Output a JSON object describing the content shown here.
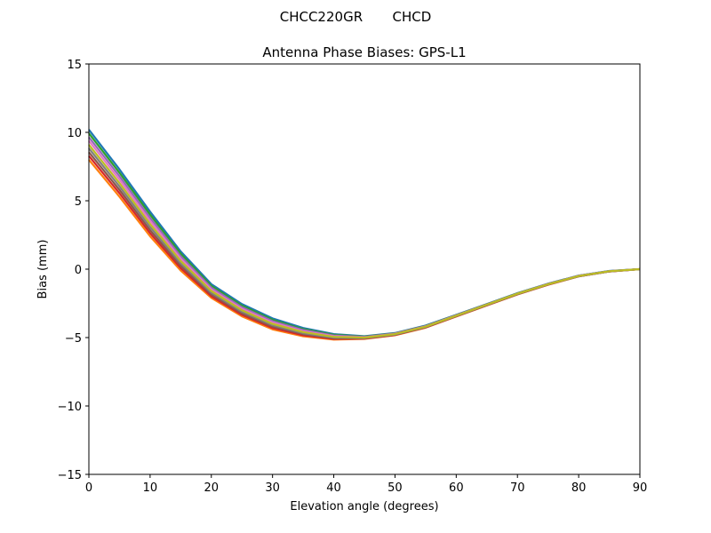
{
  "chart_data": {
    "type": "line",
    "suptitle": "CHCC220GR       CHCD",
    "title": "Antenna Phase Biases: GPS-L1",
    "xlabel": "Elevation angle (degrees)",
    "ylabel": "Bias (mm)",
    "xlim": [
      0,
      90
    ],
    "ylim": [
      -15,
      15
    ],
    "xticks": [
      0,
      10,
      20,
      30,
      40,
      50,
      60,
      70,
      80,
      90
    ],
    "yticks": [
      -15,
      -10,
      -5,
      0,
      5,
      10,
      15
    ],
    "ytick_labels": [
      "−15",
      "−10",
      "−5",
      "0",
      "5",
      "10",
      "15"
    ],
    "grid": false,
    "colors": [
      "#1f77b4",
      "#ff7f0e",
      "#2ca02c",
      "#d62728",
      "#9467bd",
      "#8c564b",
      "#e377c2",
      "#7f7f7f",
      "#bcbd22",
      "#17becf"
    ],
    "x": [
      0,
      5,
      10,
      15,
      20,
      25,
      30,
      35,
      40,
      45,
      50,
      55,
      60,
      65,
      70,
      75,
      80,
      85,
      90
    ],
    "series": [
      {
        "values": [
          10.2,
          7.3,
          4.2,
          1.3,
          -1.1,
          -2.55,
          -3.6,
          -4.3,
          -4.75,
          -4.9,
          -4.67,
          -4.12,
          -3.34,
          -2.55,
          -1.75,
          -1.06,
          -0.47,
          -0.13,
          0
        ]
      },
      {
        "values": [
          8.0,
          5.3,
          2.4,
          -0.1,
          -2.1,
          -3.45,
          -4.4,
          -4.9,
          -5.15,
          -5.1,
          -4.83,
          -4.28,
          -3.46,
          -2.65,
          -1.85,
          -1.14,
          -0.53,
          -0.17,
          0
        ]
      },
      {
        "values": [
          9.93,
          7.05,
          3.98,
          1.13,
          -1.23,
          -2.66,
          -3.7,
          -4.38,
          -4.8,
          -4.93,
          -4.69,
          -4.14,
          -3.36,
          -2.56,
          -1.76,
          -1.07,
          -0.48,
          -0.14,
          0
        ]
      },
      {
        "values": [
          8.28,
          5.55,
          2.63,
          0.08,
          -1.98,
          -3.34,
          -4.3,
          -4.83,
          -5.1,
          -5.08,
          -4.81,
          -4.26,
          -3.45,
          -2.64,
          -1.84,
          -1.13,
          -0.52,
          -0.17,
          0
        ]
      },
      {
        "values": [
          9.65,
          6.8,
          3.75,
          0.95,
          -1.35,
          -2.78,
          -3.8,
          -4.45,
          -4.85,
          -4.95,
          -4.71,
          -4.16,
          -3.37,
          -2.58,
          -1.78,
          -1.08,
          -0.49,
          -0.14,
          0
        ]
      },
      {
        "values": [
          8.55,
          5.8,
          2.85,
          0.25,
          -1.85,
          -3.23,
          -4.2,
          -4.75,
          -5.05,
          -5.05,
          -4.79,
          -4.24,
          -3.43,
          -2.63,
          -1.83,
          -1.12,
          -0.52,
          -0.16,
          0
        ]
      },
      {
        "values": [
          9.38,
          6.55,
          3.53,
          0.78,
          -1.48,
          -2.89,
          -3.9,
          -4.53,
          -4.9,
          -4.98,
          -4.73,
          -4.18,
          -3.39,
          -2.59,
          -1.79,
          -1.09,
          -0.49,
          -0.15,
          0
        ]
      },
      {
        "values": [
          8.83,
          6.05,
          3.08,
          0.43,
          -1.73,
          -3.11,
          -4.1,
          -4.68,
          -5.0,
          -5.03,
          -4.77,
          -4.22,
          -3.42,
          -2.61,
          -1.81,
          -1.11,
          -0.51,
          -0.16,
          0
        ]
      },
      {
        "values": [
          9.1,
          6.3,
          3.3,
          0.6,
          -1.6,
          -3.0,
          -4.0,
          -4.6,
          -4.95,
          -5.0,
          -4.75,
          -4.2,
          -3.4,
          -2.6,
          -1.8,
          -1.1,
          -0.5,
          -0.15,
          0
        ]
      }
    ]
  }
}
